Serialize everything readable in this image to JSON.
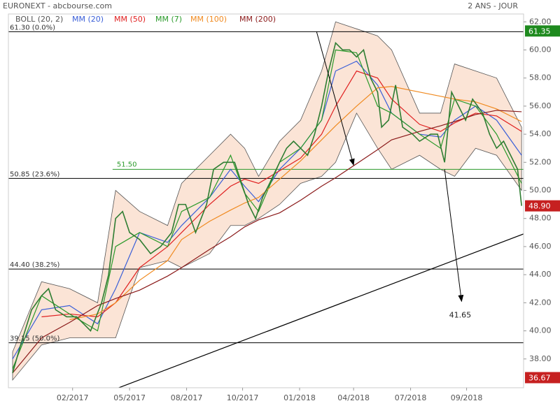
{
  "chart_data": {
    "type": "line",
    "title": "EURONEXT - abcbourse.com",
    "subtitle": "2 ANS - JOUR",
    "xlim": [
      0,
      511
    ],
    "ylim": [
      35.95,
      62.56
    ],
    "xticks": [
      {
        "value": 60,
        "label": "02/2017"
      },
      {
        "value": 117,
        "label": "05/2017"
      },
      {
        "value": 174,
        "label": "08/2017"
      },
      {
        "value": 230,
        "label": "10/2017"
      },
      {
        "value": 287,
        "label": "01/2018"
      },
      {
        "value": 341,
        "label": "04/2018"
      },
      {
        "value": 398,
        "label": "07/2018"
      },
      {
        "value": 454,
        "label": "09/2018"
      }
    ],
    "yticks": [
      {
        "value": 38,
        "label": "38.00"
      },
      {
        "value": 40,
        "label": "40.00"
      },
      {
        "value": 42,
        "label": "42.00"
      },
      {
        "value": 44,
        "label": "44.00"
      },
      {
        "value": 46,
        "label": "46.00"
      },
      {
        "value": 48,
        "label": "48.00"
      },
      {
        "value": 50,
        "label": "50.00"
      },
      {
        "value": 52,
        "label": "52.00"
      },
      {
        "value": 54,
        "label": "54.00"
      },
      {
        "value": 56,
        "label": "56.00"
      },
      {
        "value": 58,
        "label": "58.00"
      },
      {
        "value": 60,
        "label": "60.00"
      },
      {
        "value": 62,
        "label": "62.00"
      }
    ],
    "color": "#2e7d32",
    "x": [
      0,
      8,
      19,
      29,
      36,
      43,
      54,
      64,
      78,
      89,
      96,
      103,
      110,
      117,
      127,
      138,
      148,
      159,
      166,
      173,
      183,
      194,
      201,
      211,
      222,
      229,
      236,
      243,
      250,
      257,
      267,
      274,
      281,
      288,
      295,
      302,
      309,
      316,
      323,
      330,
      337,
      344,
      351,
      358,
      365,
      369,
      376,
      383,
      390,
      400,
      407,
      418,
      425,
      432,
      439,
      446,
      453,
      460,
      470,
      477,
      484,
      491,
      498,
      505,
      509
    ],
    "values": [
      37,
      39,
      41.5,
      42.5,
      43,
      41.5,
      41,
      41,
      40,
      42,
      44,
      48,
      48.5,
      47,
      46.5,
      45.5,
      46,
      47,
      49,
      49,
      47,
      49,
      51.5,
      52,
      52,
      50.5,
      49,
      48,
      49.5,
      50.5,
      52,
      53,
      53.5,
      53,
      52.5,
      54,
      56,
      58.5,
      60.5,
      60,
      60,
      59.5,
      60,
      58,
      57,
      54.5,
      55,
      57.5,
      54.5,
      54,
      53.5,
      54,
      54,
      52,
      57,
      56,
      55,
      56.5,
      55.5,
      54,
      53,
      53.5,
      52.5,
      51.5,
      48.9
    ],
    "bands": {
      "name": "BOLL (20, 2)",
      "color": "#f9d9c4",
      "x": [
        0,
        29,
        57,
        85,
        103,
        127,
        155,
        169,
        197,
        218,
        232,
        246,
        267,
        288,
        309,
        323,
        344,
        365,
        379,
        407,
        428,
        442,
        463,
        484,
        509
      ],
      "upper": [
        38.5,
        43.5,
        43,
        42,
        50,
        48.5,
        47.5,
        50.5,
        52.5,
        54,
        53,
        51,
        53.5,
        55,
        58.5,
        62,
        61.5,
        61,
        60,
        55.5,
        55.5,
        59,
        58.5,
        58,
        54.5
      ],
      "lower": [
        36.5,
        39,
        39.5,
        39.5,
        39.5,
        44.5,
        45,
        44.5,
        45.5,
        47.5,
        47.5,
        48,
        49,
        50.5,
        51,
        52,
        55.5,
        53,
        51.5,
        52.5,
        51.5,
        51,
        53,
        52.5,
        50
      ]
    },
    "series": [
      {
        "name": "MM (20)",
        "color": "#3a5fd8",
        "x": [
          0,
          29,
          57,
          85,
          103,
          127,
          155,
          169,
          197,
          218,
          232,
          246,
          267,
          288,
          309,
          323,
          344,
          365,
          379,
          407,
          428,
          442,
          463,
          484,
          509
        ],
        "values": [
          38,
          41.5,
          41.8,
          40.5,
          43,
          47,
          46.3,
          47.5,
          49.5,
          51.5,
          50.3,
          49.2,
          51.5,
          53,
          55,
          58.5,
          59.2,
          57.5,
          55.5,
          54,
          53.8,
          55,
          56,
          55,
          52.5
        ]
      },
      {
        "name": "MM (50)",
        "color": "#e02020",
        "x": [
          0,
          29,
          57,
          85,
          103,
          127,
          155,
          169,
          197,
          218,
          232,
          246,
          267,
          288,
          309,
          323,
          344,
          365,
          379,
          407,
          428,
          442,
          463,
          484,
          509
        ],
        "values": [
          null,
          41,
          41.2,
          41,
          42,
          44.5,
          46,
          47,
          49,
          50.3,
          50.8,
          50.5,
          51.4,
          52.3,
          54,
          56,
          58.5,
          58,
          56.5,
          54.7,
          54.2,
          54.8,
          55.5,
          55.3,
          54.2
        ]
      },
      {
        "name": "MM (7)",
        "color": "#2a9a2a",
        "x": [
          0,
          29,
          57,
          85,
          103,
          127,
          155,
          169,
          197,
          218,
          232,
          246,
          267,
          288,
          309,
          323,
          344,
          365,
          379,
          407,
          428,
          442,
          463,
          484,
          509
        ],
        "values": [
          37.3,
          42.5,
          41.2,
          40,
          46,
          47,
          46,
          48.5,
          49.5,
          52.5,
          49.8,
          48.5,
          52,
          53,
          55,
          60,
          59.8,
          56,
          55.5,
          54,
          53,
          56.5,
          56,
          54,
          50.5
        ]
      },
      {
        "name": "MM (100)",
        "color": "#f08a20",
        "x": [
          0,
          29,
          57,
          85,
          103,
          127,
          155,
          169,
          197,
          218,
          232,
          246,
          267,
          288,
          309,
          323,
          344,
          365,
          379,
          407,
          428,
          442,
          463,
          484,
          509
        ],
        "values": [
          null,
          null,
          40.8,
          41.2,
          42,
          43.6,
          45,
          46.5,
          47.8,
          48.6,
          49.1,
          49.5,
          50.8,
          52.1,
          53.6,
          54.6,
          56,
          57.3,
          57.4,
          57,
          56.7,
          56.5,
          56.3,
          55.8,
          54.9
        ]
      },
      {
        "name": "MM (200)",
        "color": "#8b1a1a",
        "x": [
          0,
          29,
          57,
          85,
          103,
          127,
          155,
          169,
          197,
          218,
          232,
          246,
          267,
          288,
          309,
          323,
          344,
          365,
          379,
          407,
          428,
          442,
          463,
          484,
          509
        ],
        "values": [
          37,
          39.5,
          40.6,
          41.8,
          42.3,
          42.9,
          43.9,
          44.5,
          45.8,
          46.7,
          47.4,
          47.9,
          48.4,
          49.3,
          50.3,
          50.9,
          51.9,
          52.9,
          53.6,
          54.2,
          54.6,
          54.9,
          55.4,
          55.7,
          55.6
        ]
      }
    ],
    "fib_levels": [
      {
        "value": 61.3,
        "label": "61.30 (0.0%)"
      },
      {
        "value": 50.85,
        "label": "50.85 (23.6%)"
      },
      {
        "value": 44.4,
        "label": "44.40 (38.2%)"
      },
      {
        "value": 39.15,
        "label": "39.15 (50.0%)"
      }
    ],
    "support": {
      "value": 51.5,
      "label": "51.50",
      "color": "#2a9a2a",
      "x_start": 100
    },
    "trend_line": {
      "x": [
        91,
        511
      ],
      "y": [
        35.54,
        46.9
      ]
    },
    "arrows": [
      {
        "x": [
          304,
          341
        ],
        "y": [
          61.3,
          51.8
        ]
      },
      {
        "x": [
          432,
          449
        ],
        "y": [
          51.5,
          42.1
        ],
        "value": 41.65
      }
    ],
    "price_labels": [
      {
        "value": 61.35,
        "label": "61.35",
        "color": "#1e8a1e"
      },
      {
        "value": 48.9,
        "label": "48.90",
        "color": "#c62020"
      },
      {
        "value": 36.67,
        "label": "36.67",
        "color": "#c62020"
      }
    ]
  }
}
